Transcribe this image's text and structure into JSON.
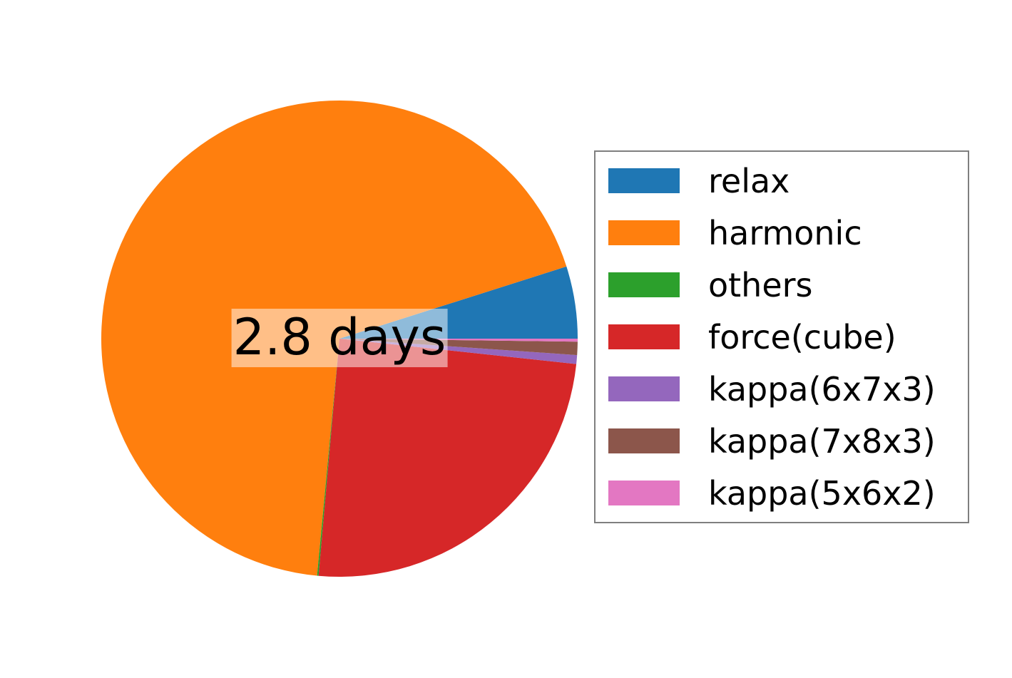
{
  "figure": {
    "background": "#ffffff"
  },
  "chart_data": {
    "type": "pie",
    "title": "",
    "center_label": "2.8 days",
    "center_label_color": "#000000",
    "center_label_bg": "rgba(255,255,255,0.5)",
    "legend_position": "right",
    "legend_border_color": "#7f7f7f",
    "start_angle_deg": 0,
    "direction": "counterclockwise",
    "series": [
      {
        "name": "relax",
        "percent": 4.9,
        "color": "#1f77b4"
      },
      {
        "name": "harmonic",
        "percent": 68.6,
        "color": "#ff7f0e"
      },
      {
        "name": "others",
        "percent": 0.1,
        "color": "#2ca02c"
      },
      {
        "name": "force(cube)",
        "percent": 24.7,
        "color": "#d62728"
      },
      {
        "name": "kappa(6x7x3)",
        "percent": 0.6,
        "color": "#9467bd"
      },
      {
        "name": "kappa(7x8x3)",
        "percent": 0.9,
        "color": "#8c564b"
      },
      {
        "name": "kappa(5x6x2)",
        "percent": 0.2,
        "color": "#e377c2"
      }
    ]
  }
}
